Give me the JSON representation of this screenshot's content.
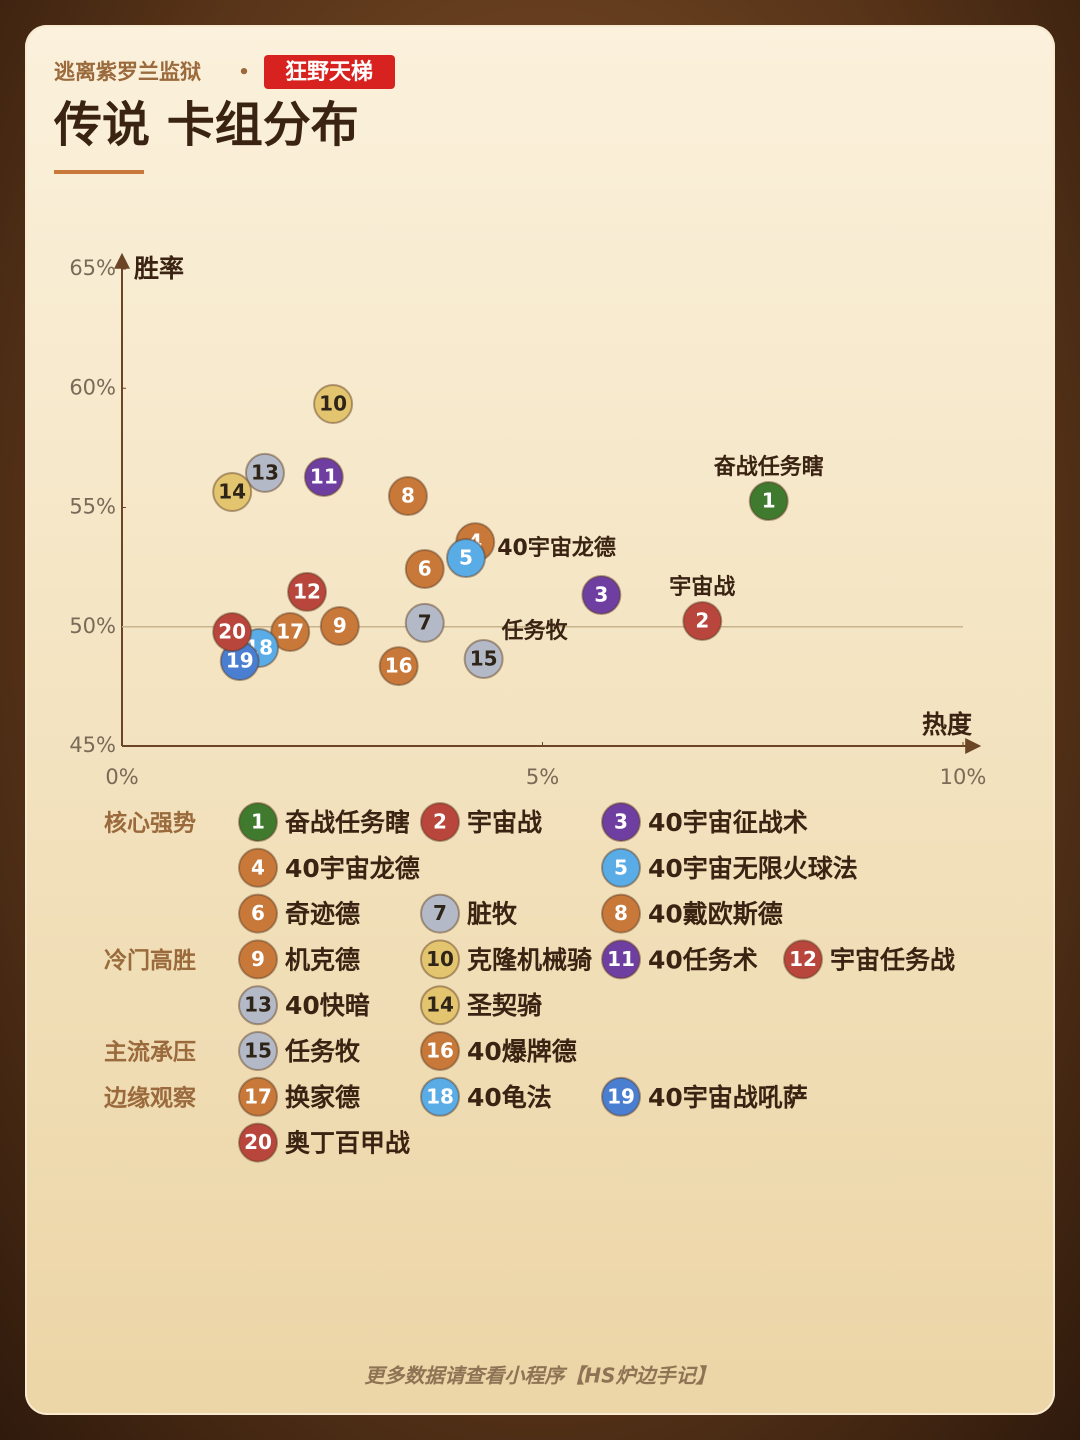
{
  "header": {
    "subtitle": "逃离紫罗兰监狱",
    "separator": "•",
    "badge": "狂野天梯",
    "title": "传说 卡组分布"
  },
  "chart_data": {
    "type": "scatter",
    "x_label": "热度",
    "y_label": "胜率",
    "xlim": [
      0,
      10
    ],
    "ylim": [
      45,
      65
    ],
    "xticks": [
      {
        "value": 0,
        "label": "0%"
      },
      {
        "value": 5,
        "label": "5%"
      },
      {
        "value": 10,
        "label": "10%"
      }
    ],
    "yticks": [
      {
        "value": 45,
        "label": "45%"
      },
      {
        "value": 50,
        "label": "50%"
      },
      {
        "value": 55,
        "label": "55%"
      },
      {
        "value": 60,
        "label": "60%"
      },
      {
        "value": 65,
        "label": "65%"
      }
    ],
    "reference_line": 50,
    "points": [
      {
        "id": 1,
        "name": "奋战任务瞎",
        "x": 7.69,
        "y": 55.27,
        "color": "#3f7a2e",
        "annotation": "奋战任务瞎"
      },
      {
        "id": 2,
        "name": "宇宙战",
        "x": 6.9,
        "y": 50.24,
        "color": "#b9463c",
        "annotation": "宇宙战"
      },
      {
        "id": 3,
        "name": "40宇宙征战术",
        "x": 5.7,
        "y": 51.33,
        "color": "#6e3fa0"
      },
      {
        "id": 4,
        "name": "40宇宙龙德",
        "x": 4.2,
        "y": 53.55,
        "color": "#c8793a",
        "annotation": "40宇宙龙德"
      },
      {
        "id": 5,
        "name": "40宇宙无限火球法",
        "x": 4.09,
        "y": 52.88,
        "color": "#5aace6"
      },
      {
        "id": 6,
        "name": "奇迹德",
        "x": 3.6,
        "y": 52.42,
        "color": "#c8793a"
      },
      {
        "id": 7,
        "name": "脏牧",
        "x": 3.6,
        "y": 50.16,
        "color": "#b3b9c6"
      },
      {
        "id": 8,
        "name": "40戴欧斯德",
        "x": 3.4,
        "y": 55.48,
        "color": "#c8793a"
      },
      {
        "id": 9,
        "name": "机克德",
        "x": 2.59,
        "y": 50.03,
        "color": "#c8793a"
      },
      {
        "id": 10,
        "name": "克隆机械骑",
        "x": 2.51,
        "y": 59.34,
        "color": "#e3c46f"
      },
      {
        "id": 11,
        "name": "40任务术",
        "x": 2.4,
        "y": 56.28,
        "color": "#6e3fa0"
      },
      {
        "id": 12,
        "name": "宇宙任务战",
        "x": 2.2,
        "y": 51.46,
        "color": "#b9463c"
      },
      {
        "id": 13,
        "name": "40快暗",
        "x": 1.7,
        "y": 56.45,
        "color": "#b3b9c6"
      },
      {
        "id": 14,
        "name": "圣契骑",
        "x": 1.31,
        "y": 55.65,
        "color": "#e3c46f"
      },
      {
        "id": 15,
        "name": "任务牧",
        "x": 4.3,
        "y": 48.65,
        "color": "#b3b9c6",
        "annotation": "任务牧"
      },
      {
        "id": 16,
        "name": "40爆牌德",
        "x": 3.29,
        "y": 48.35,
        "color": "#c8793a"
      },
      {
        "id": 17,
        "name": "换家德",
        "x": 2.0,
        "y": 49.78,
        "color": "#c8793a"
      },
      {
        "id": 18,
        "name": "40龟法",
        "x": 1.63,
        "y": 49.11,
        "color": "#5aace6"
      },
      {
        "id": 19,
        "name": "40宇宙战吼萨",
        "x": 1.4,
        "y": 48.56,
        "color": "#4a7ed0"
      },
      {
        "id": 20,
        "name": "奥丁百甲战",
        "x": 1.31,
        "y": 49.78,
        "color": "#b9463c"
      }
    ],
    "groups": [
      {
        "name": "核心强势",
        "points": [
          1,
          2,
          3,
          4,
          5,
          6,
          7,
          8
        ]
      },
      {
        "name": "冷门高胜",
        "points": [
          9,
          10,
          11,
          12,
          13,
          14
        ]
      },
      {
        "name": "主流承压",
        "points": [
          15,
          16
        ]
      },
      {
        "name": "边缘观察",
        "points": [
          17,
          18,
          19,
          20
        ]
      }
    ]
  },
  "footer": "更多数据请查看小程序【HS炉边手记】"
}
